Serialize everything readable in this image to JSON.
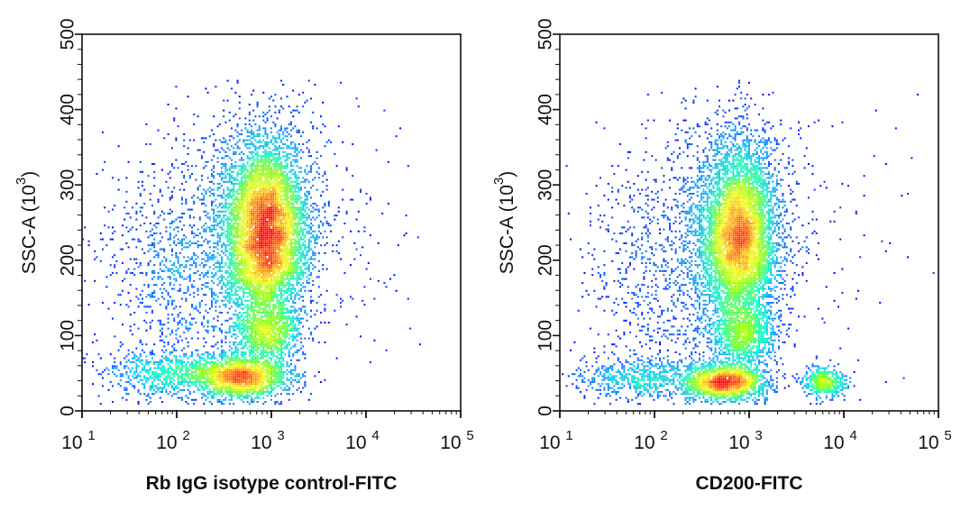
{
  "chart_data": [
    {
      "type": "scatter",
      "subtype": "flow-cytometry density dot plot",
      "panel": "left",
      "xlabel": "Rb IgG isotype control-FITC",
      "ylabel_main": "SSC-A",
      "ylabel_unit_base": "10",
      "ylabel_unit_exp": "3",
      "xscale": "log",
      "xlim": [
        10,
        100000
      ],
      "ylim": [
        0,
        500
      ],
      "x_ticks": [
        {
          "base": "10",
          "exp": "1"
        },
        {
          "base": "10",
          "exp": "2"
        },
        {
          "base": "10",
          "exp": "3"
        },
        {
          "base": "10",
          "exp": "4"
        },
        {
          "base": "10",
          "exp": "5"
        }
      ],
      "y_ticks": [
        "0",
        "100",
        "200",
        "300",
        "400",
        "500"
      ],
      "y_tick_values": [
        0,
        100,
        200,
        300,
        400,
        500
      ],
      "colormap": [
        "#0000ff",
        "#00a0ff",
        "#00ffc0",
        "#80ff00",
        "#ffff00",
        "#ff8000",
        "#ff0000"
      ],
      "populations": [
        {
          "name": "main",
          "log10_x_mean": 2.95,
          "log10_x_sd": 0.2,
          "y_mean": 235,
          "y_sd": 55,
          "count": 5200
        },
        {
          "name": "main-halo",
          "log10_x_mean": 2.9,
          "log10_x_sd": 0.32,
          "y_mean": 250,
          "y_sd": 80,
          "count": 2200
        },
        {
          "name": "low-ssc",
          "log10_x_mean": 2.7,
          "log10_x_sd": 0.25,
          "y_mean": 45,
          "y_sd": 14,
          "count": 1800
        },
        {
          "name": "mid-ssc",
          "log10_x_mean": 2.95,
          "log10_x_sd": 0.18,
          "y_mean": 105,
          "y_sd": 20,
          "count": 900
        },
        {
          "name": "low-dim",
          "log10_x_mean": 1.9,
          "log10_x_sd": 0.35,
          "y_mean": 50,
          "y_sd": 15,
          "count": 700
        },
        {
          "name": "dim-scatter",
          "log10_x_mean": 2.1,
          "log10_x_sd": 0.45,
          "y_mean": 190,
          "y_sd": 80,
          "count": 1100
        },
        {
          "name": "bright-sparse",
          "log10_x_mean": 3.8,
          "log10_x_sd": 0.5,
          "y_mean": 230,
          "y_sd": 90,
          "count": 110
        }
      ]
    },
    {
      "type": "scatter",
      "subtype": "flow-cytometry density dot plot",
      "panel": "right",
      "xlabel": "CD200-FITC",
      "ylabel_main": "SSC-A",
      "ylabel_unit_base": "10",
      "ylabel_unit_exp": "3",
      "xscale": "log",
      "xlim": [
        10,
        100000
      ],
      "ylim": [
        0,
        500
      ],
      "x_ticks": [
        {
          "base": "10",
          "exp": "1"
        },
        {
          "base": "10",
          "exp": "2"
        },
        {
          "base": "10",
          "exp": "3"
        },
        {
          "base": "10",
          "exp": "4"
        },
        {
          "base": "10",
          "exp": "5"
        }
      ],
      "y_ticks": [
        "0",
        "100",
        "200",
        "300",
        "400",
        "500"
      ],
      "y_tick_values": [
        0,
        100,
        200,
        300,
        400,
        500
      ],
      "colormap": [
        "#0000ff",
        "#00a0ff",
        "#00ffc0",
        "#80ff00",
        "#ffff00",
        "#ff8000",
        "#ff0000"
      ],
      "populations": [
        {
          "name": "main",
          "log10_x_mean": 2.9,
          "log10_x_sd": 0.19,
          "y_mean": 225,
          "y_sd": 55,
          "count": 5000
        },
        {
          "name": "main-halo",
          "log10_x_mean": 2.85,
          "log10_x_sd": 0.3,
          "y_mean": 250,
          "y_sd": 80,
          "count": 2000
        },
        {
          "name": "low-ssc",
          "log10_x_mean": 2.75,
          "log10_x_sd": 0.22,
          "y_mean": 38,
          "y_sd": 12,
          "count": 1900
        },
        {
          "name": "mid-ssc",
          "log10_x_mean": 2.95,
          "log10_x_sd": 0.18,
          "y_mean": 100,
          "y_sd": 20,
          "count": 900
        },
        {
          "name": "cd200-positive",
          "log10_x_mean": 3.8,
          "log10_x_sd": 0.12,
          "y_mean": 38,
          "y_sd": 10,
          "count": 450
        },
        {
          "name": "low-dim",
          "log10_x_mean": 1.85,
          "log10_x_sd": 0.35,
          "y_mean": 45,
          "y_sd": 14,
          "count": 600
        },
        {
          "name": "dim-scatter",
          "log10_x_mean": 2.1,
          "log10_x_sd": 0.45,
          "y_mean": 190,
          "y_sd": 80,
          "count": 900
        },
        {
          "name": "bright-sparse",
          "log10_x_mean": 3.9,
          "log10_x_sd": 0.45,
          "y_mean": 230,
          "y_sd": 90,
          "count": 90
        }
      ]
    }
  ]
}
